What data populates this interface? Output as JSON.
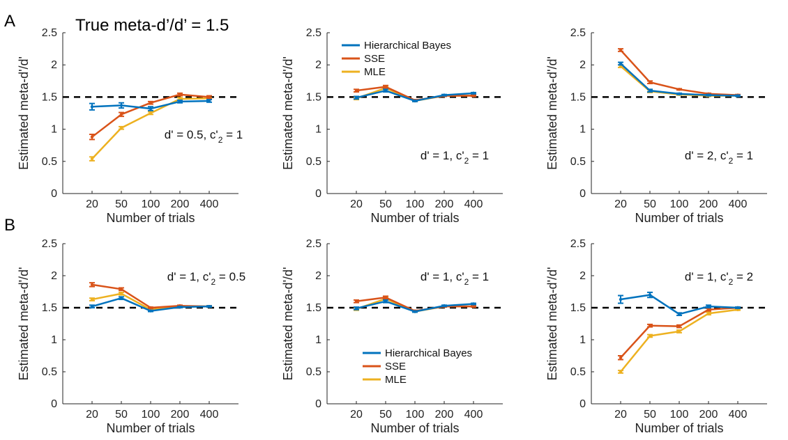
{
  "figure": {
    "title": "True meta-d’/d’ = 1.5",
    "row_labels": [
      "A",
      "B"
    ],
    "colors": {
      "Hierarchical Bayes": "#0072BD",
      "SSE": "#D95319",
      "MLE": "#EDB120",
      "reference": "#000000"
    }
  },
  "chart_data": [
    {
      "type": "line",
      "panel": "A1",
      "annotation": "d' = 0.5, c'",
      "annotation_sub": "2",
      "annotation_tail": " = 1",
      "categories": [
        "20",
        "50",
        "100",
        "200",
        "400"
      ],
      "xlabel": "Number of trials",
      "ylabel": "Estimated meta-d'/d'",
      "ylim": [
        0,
        2.5
      ],
      "yticks": [
        "0",
        "0.5",
        "1",
        "1.5",
        "2",
        "2.5"
      ],
      "reference_line": 1.5,
      "legend": false,
      "series": [
        {
          "name": "Hierarchical Bayes",
          "values": [
            1.35,
            1.37,
            1.32,
            1.43,
            1.44
          ],
          "err": [
            0.05,
            0.04,
            0.03,
            0.02,
            0.02
          ]
        },
        {
          "name": "SSE",
          "values": [
            0.88,
            1.23,
            1.41,
            1.54,
            1.5
          ],
          "err": [
            0.04,
            0.03,
            0.02,
            0.02,
            0.02
          ]
        },
        {
          "name": "MLE",
          "values": [
            0.54,
            1.02,
            1.25,
            1.47,
            1.48
          ],
          "err": [
            0.03,
            0.02,
            0.02,
            0.02,
            0.01
          ]
        }
      ]
    },
    {
      "type": "line",
      "panel": "A2",
      "annotation": "d' = 1, c'",
      "annotation_sub": "2",
      "annotation_tail": " = 1",
      "categories": [
        "20",
        "50",
        "100",
        "200",
        "400"
      ],
      "xlabel": "Number of trials",
      "ylabel": "Estimated meta-d'/d'",
      "ylim": [
        0,
        2.5
      ],
      "yticks": [
        "0",
        "0.5",
        "1",
        "1.5",
        "2",
        "2.5"
      ],
      "reference_line": 1.5,
      "legend": true,
      "series": [
        {
          "name": "Hierarchical Bayes",
          "values": [
            1.49,
            1.6,
            1.44,
            1.53,
            1.56
          ],
          "err": [
            0.02,
            0.02,
            0.01,
            0.01,
            0.01
          ]
        },
        {
          "name": "SSE",
          "values": [
            1.6,
            1.66,
            1.45,
            1.52,
            1.52
          ],
          "err": [
            0.02,
            0.02,
            0.01,
            0.01,
            0.01
          ]
        },
        {
          "name": "MLE",
          "values": [
            1.48,
            1.64,
            1.44,
            1.52,
            1.52
          ],
          "err": [
            0.02,
            0.02,
            0.01,
            0.01,
            0.01
          ]
        }
      ]
    },
    {
      "type": "line",
      "panel": "A3",
      "annotation": "d' = 2, c'",
      "annotation_sub": "2",
      "annotation_tail": " = 1",
      "categories": [
        "20",
        "50",
        "100",
        "200",
        "400"
      ],
      "xlabel": "Number of trials",
      "ylabel": "Estimated meta-d'/d'",
      "ylim": [
        0,
        2.5
      ],
      "yticks": [
        "0",
        "0.5",
        "1",
        "1.5",
        "2",
        "2.5"
      ],
      "reference_line": 1.5,
      "legend": false,
      "series": [
        {
          "name": "Hierarchical Bayes",
          "values": [
            2.02,
            1.6,
            1.55,
            1.53,
            1.52
          ],
          "err": [
            0.02,
            0.02,
            0.01,
            0.01,
            0.01
          ]
        },
        {
          "name": "SSE",
          "values": [
            2.23,
            1.73,
            1.62,
            1.55,
            1.53
          ],
          "err": [
            0.02,
            0.02,
            0.01,
            0.01,
            0.01
          ]
        },
        {
          "name": "MLE",
          "values": [
            1.98,
            1.59,
            1.54,
            1.52,
            1.52
          ],
          "err": [
            0.02,
            0.02,
            0.01,
            0.01,
            0.01
          ]
        }
      ]
    },
    {
      "type": "line",
      "panel": "B1",
      "annotation": "d' = 1, c'",
      "annotation_sub": "2",
      "annotation_tail": " = 0.5",
      "categories": [
        "20",
        "50",
        "100",
        "200",
        "400"
      ],
      "xlabel": "Number of trials",
      "ylabel": "Estimated meta-d'/d'",
      "ylim": [
        0,
        2.5
      ],
      "yticks": [
        "0",
        "0.5",
        "1",
        "1.5",
        "2",
        "2.5"
      ],
      "reference_line": 1.5,
      "legend": false,
      "series": [
        {
          "name": "Hierarchical Bayes",
          "values": [
            1.52,
            1.65,
            1.45,
            1.51,
            1.52
          ],
          "err": [
            0.02,
            0.02,
            0.01,
            0.01,
            0.01
          ]
        },
        {
          "name": "SSE",
          "values": [
            1.86,
            1.79,
            1.5,
            1.53,
            1.52
          ],
          "err": [
            0.03,
            0.02,
            0.01,
            0.01,
            0.01
          ]
        },
        {
          "name": "MLE",
          "values": [
            1.63,
            1.72,
            1.47,
            1.52,
            1.52
          ],
          "err": [
            0.02,
            0.02,
            0.01,
            0.01,
            0.01
          ]
        }
      ]
    },
    {
      "type": "line",
      "panel": "B2",
      "annotation": "d' = 1, c'",
      "annotation_sub": "2",
      "annotation_tail": " = 1",
      "categories": [
        "20",
        "50",
        "100",
        "200",
        "400"
      ],
      "xlabel": "Number of trials",
      "ylabel": "Estimated meta-d'/d'",
      "ylim": [
        0,
        2.5
      ],
      "yticks": [
        "0",
        "0.5",
        "1",
        "1.5",
        "2",
        "2.5"
      ],
      "reference_line": 1.5,
      "legend": true,
      "series": [
        {
          "name": "Hierarchical Bayes",
          "values": [
            1.49,
            1.6,
            1.44,
            1.53,
            1.56
          ],
          "err": [
            0.02,
            0.02,
            0.01,
            0.01,
            0.01
          ]
        },
        {
          "name": "SSE",
          "values": [
            1.6,
            1.66,
            1.45,
            1.52,
            1.52
          ],
          "err": [
            0.02,
            0.02,
            0.01,
            0.01,
            0.01
          ]
        },
        {
          "name": "MLE",
          "values": [
            1.48,
            1.64,
            1.44,
            1.52,
            1.52
          ],
          "err": [
            0.02,
            0.02,
            0.01,
            0.01,
            0.01
          ]
        }
      ]
    },
    {
      "type": "line",
      "panel": "B3",
      "annotation": "d' = 1, c'",
      "annotation_sub": "2",
      "annotation_tail": " = 2",
      "categories": [
        "20",
        "50",
        "100",
        "200",
        "400"
      ],
      "xlabel": "Number of trials",
      "ylabel": "Estimated meta-d'/d'",
      "ylim": [
        0,
        2.5
      ],
      "yticks": [
        "0",
        "0.5",
        "1",
        "1.5",
        "2",
        "2.5"
      ],
      "reference_line": 1.5,
      "legend": false,
      "series": [
        {
          "name": "Hierarchical Bayes",
          "values": [
            1.63,
            1.7,
            1.4,
            1.52,
            1.5
          ],
          "err": [
            0.06,
            0.04,
            0.02,
            0.02,
            0.01
          ]
        },
        {
          "name": "SSE",
          "values": [
            0.72,
            1.22,
            1.21,
            1.47,
            1.5
          ],
          "err": [
            0.03,
            0.02,
            0.02,
            0.02,
            0.01
          ]
        },
        {
          "name": "MLE",
          "values": [
            0.5,
            1.06,
            1.13,
            1.41,
            1.47
          ],
          "err": [
            0.02,
            0.02,
            0.02,
            0.02,
            0.01
          ]
        }
      ]
    }
  ]
}
